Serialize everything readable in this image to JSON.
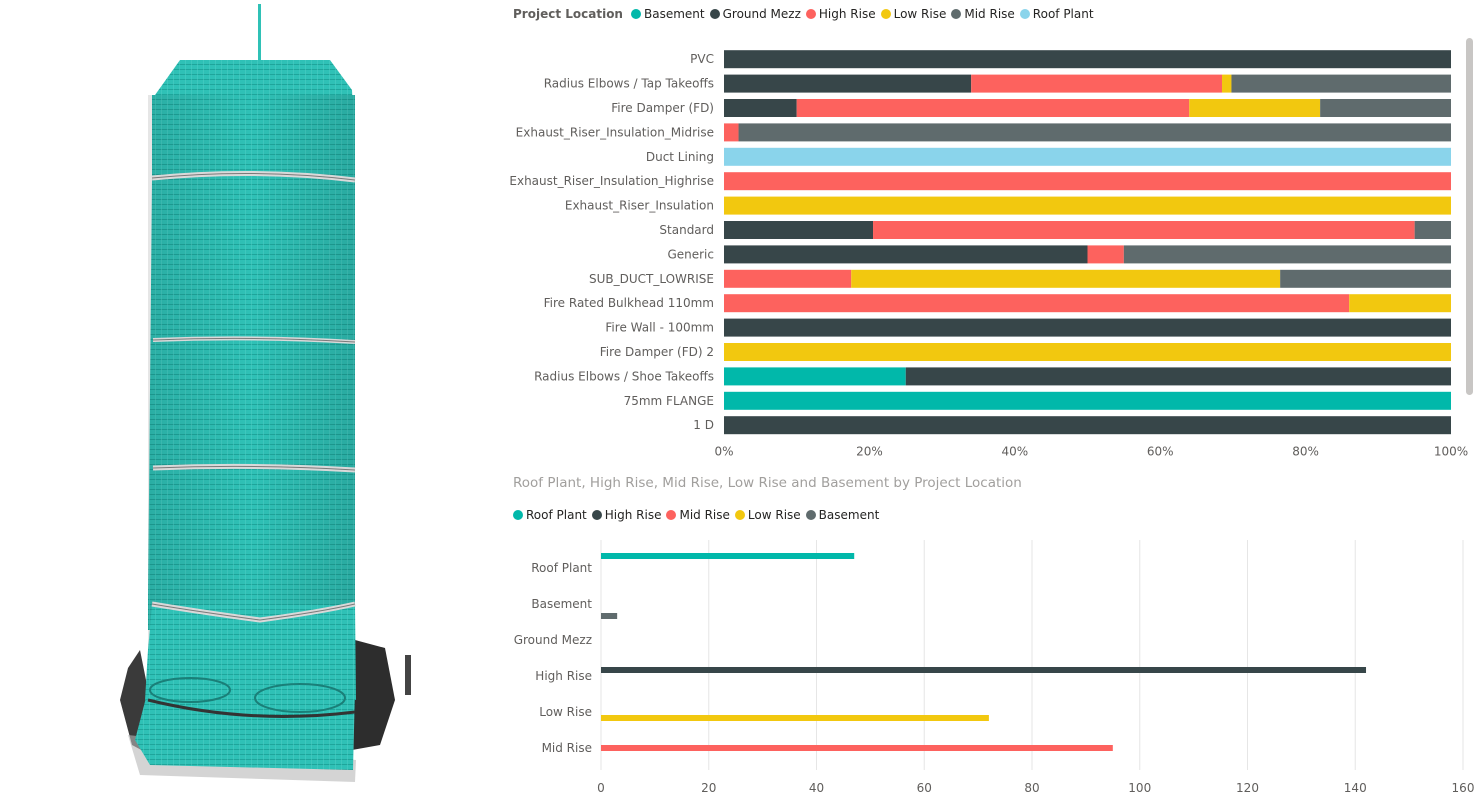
{
  "colors": {
    "Basement": "#01b8aa",
    "Ground Mezz": "#374649",
    "High Rise": "#fd625e",
    "Low Rise": "#f2c80f",
    "Mid Rise": "#5f6b6d",
    "Roof Plant": "#8ad4eb"
  },
  "legend1": {
    "title": "Project Location",
    "items": [
      {
        "label": "Basement",
        "color": "#01b8aa"
      },
      {
        "label": "Ground Mezz",
        "color": "#374649"
      },
      {
        "label": "High Rise",
        "color": "#fd625e"
      },
      {
        "label": "Low Rise",
        "color": "#f2c80f"
      },
      {
        "label": "Mid Rise",
        "color": "#5f6b6d"
      },
      {
        "label": "Roof Plant",
        "color": "#8ad4eb"
      }
    ]
  },
  "legend2": {
    "items": [
      {
        "label": "Roof Plant",
        "color": "#01b8aa"
      },
      {
        "label": "High Rise",
        "color": "#374649"
      },
      {
        "label": "Mid Rise",
        "color": "#fd625e"
      },
      {
        "label": "Low Rise",
        "color": "#f2c80f"
      },
      {
        "label": "Basement",
        "color": "#5f6b6d"
      }
    ]
  },
  "chart2_title": "Roof Plant, High Rise, Mid Rise, Low Rise and Basement by Project Location",
  "chart_data": [
    {
      "type": "bar",
      "stacked": "100%",
      "orientation": "horizontal",
      "legend_title": "Project Location",
      "legend_position": "top-left",
      "grid": false,
      "categories": [
        "PVC",
        "Radius Elbows / Tap Takeoffs",
        "Fire Damper (FD)",
        "Exhaust_Riser_Insulation_Midrise",
        "Duct Lining",
        "Exhaust_Riser_Insulation_Highrise",
        "Exhaust_Riser_Insulation",
        "Standard",
        "Generic",
        "SUB_DUCT_LOWRISE",
        "Fire Rated Bulkhead 110mm",
        "Fire Wall - 100mm",
        "Fire Damper (FD) 2",
        "Radius Elbows / Shoe Takeoffs",
        "75mm FLANGE",
        "1 D"
      ],
      "series": [
        {
          "name": "Basement",
          "values": [
            0,
            0,
            0,
            0,
            0,
            0,
            0,
            0,
            0,
            0,
            0,
            0,
            0,
            25,
            100,
            0
          ]
        },
        {
          "name": "Ground Mezz",
          "values": [
            100,
            34,
            10,
            0,
            0,
            0,
            0,
            20.5,
            50,
            0,
            0,
            100,
            0,
            75,
            0,
            100
          ]
        },
        {
          "name": "High Rise",
          "values": [
            0,
            34.5,
            54,
            2,
            0,
            100,
            0,
            74.5,
            5,
            17.5,
            86,
            0,
            0,
            0,
            0,
            0
          ]
        },
        {
          "name": "Low Rise",
          "values": [
            0,
            1.3,
            18,
            0,
            0,
            0,
            100,
            0,
            0,
            59,
            14,
            0,
            100,
            0,
            0,
            0
          ]
        },
        {
          "name": "Mid Rise",
          "values": [
            0,
            30.2,
            18,
            98,
            0,
            0,
            0,
            5,
            45,
            23.5,
            0,
            0,
            0,
            0,
            0,
            0
          ]
        },
        {
          "name": "Roof Plant",
          "values": [
            0,
            0,
            0,
            0,
            100,
            0,
            0,
            0,
            0,
            0,
            0,
            0,
            0,
            0,
            0,
            0
          ]
        }
      ],
      "x_ticks": [
        "0%",
        "20%",
        "40%",
        "60%",
        "80%",
        "100%"
      ],
      "xlim": [
        0,
        100
      ]
    },
    {
      "type": "bar",
      "orientation": "horizontal",
      "title": "Roof Plant, High Rise, Mid Rise, Low Rise and Basement by Project Location",
      "legend_position": "top-left",
      "grid": true,
      "categories": [
        "Roof Plant",
        "Basement",
        "Ground Mezz",
        "High Rise",
        "Low Rise",
        "Mid Rise"
      ],
      "series": [
        {
          "name": "Roof Plant",
          "values": [
            47,
            0,
            0,
            0,
            0,
            0
          ]
        },
        {
          "name": "High Rise",
          "values": [
            0,
            0,
            0,
            142,
            0,
            0
          ]
        },
        {
          "name": "Mid Rise",
          "values": [
            0,
            0,
            0,
            0,
            0,
            95
          ]
        },
        {
          "name": "Low Rise",
          "values": [
            0,
            0,
            0,
            0,
            72,
            0
          ]
        },
        {
          "name": "Basement",
          "values": [
            0,
            3,
            0,
            0,
            0,
            0
          ]
        }
      ],
      "x_ticks": [
        0,
        20,
        40,
        60,
        80,
        100,
        120,
        140,
        160
      ],
      "xlim": [
        0,
        160
      ]
    }
  ]
}
